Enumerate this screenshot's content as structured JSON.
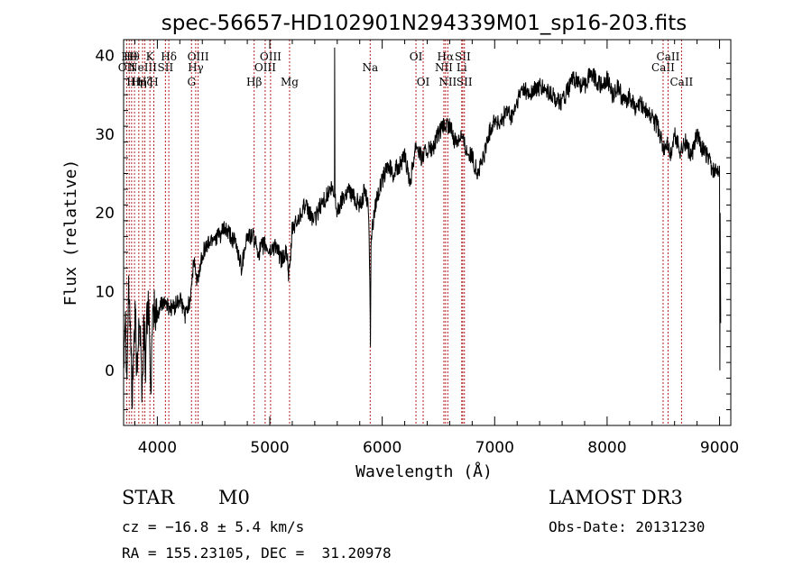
{
  "chart_data": {
    "type": "line",
    "title": "spec-56657-HD102901N294339M01_sp16-203.fits",
    "xlabel": "Wavelength (Å)",
    "ylabel": "Flux (relative)",
    "xlim": [
      3700,
      9100
    ],
    "ylim": [
      -7,
      42
    ],
    "xticks": [
      4000,
      5000,
      6000,
      7000,
      8000,
      9000
    ],
    "yticks": [
      0,
      10,
      20,
      30,
      40
    ],
    "series": [
      {
        "name": "flux",
        "x": [
          3700,
          3715,
          3730,
          3745,
          3760,
          3775,
          3790,
          3805,
          3820,
          3835,
          3850,
          3865,
          3880,
          3895,
          3910,
          3925,
          3940,
          3955,
          3970,
          3985,
          4000,
          4050,
          4100,
          4150,
          4200,
          4250,
          4290,
          4310,
          4330,
          4350,
          4380,
          4400,
          4450,
          4500,
          4550,
          4600,
          4650,
          4700,
          4750,
          4760,
          4780,
          4800,
          4850,
          4900,
          4950,
          5000,
          5050,
          5100,
          5150,
          5170,
          5180,
          5200,
          5250,
          5300,
          5350,
          5400,
          5450,
          5500,
          5550,
          5575,
          5577,
          5580,
          5600,
          5650,
          5700,
          5750,
          5800,
          5850,
          5880,
          5890,
          5895,
          5900,
          5910,
          5950,
          6000,
          6050,
          6100,
          6150,
          6200,
          6250,
          6300,
          6350,
          6400,
          6450,
          6500,
          6550,
          6600,
          6650,
          6700,
          6750,
          6800,
          6850,
          6900,
          6950,
          7000,
          7050,
          7100,
          7150,
          7200,
          7250,
          7300,
          7400,
          7500,
          7600,
          7700,
          7800,
          7850,
          7900,
          7950,
          8000,
          8050,
          8100,
          8150,
          8200,
          8250,
          8300,
          8400,
          8450,
          8500,
          8540,
          8560,
          8600,
          8650,
          8700,
          8750,
          8800,
          8850,
          8900,
          8950,
          9000,
          9003,
          9005,
          9010
        ],
        "values": [
          2,
          8,
          -1,
          11,
          6,
          -4,
          3,
          7,
          -2,
          8,
          4,
          -3,
          6,
          1,
          7,
          9,
          -3,
          4,
          8,
          7,
          7,
          9,
          8,
          8,
          9,
          7,
          9,
          12,
          14,
          11,
          13,
          15,
          16,
          17,
          17,
          18,
          17,
          16,
          13,
          14,
          16,
          17,
          17,
          15,
          16,
          15,
          16,
          14,
          15,
          12,
          13,
          18,
          19,
          21,
          20,
          19,
          21,
          22,
          23,
          22,
          41,
          22,
          20,
          22,
          23,
          22,
          21,
          23,
          20,
          12,
          3,
          16,
          18,
          22,
          24,
          26,
          25,
          26,
          27,
          24,
          29,
          27,
          28,
          28,
          30,
          31,
          31,
          29,
          30,
          28,
          27,
          25,
          27,
          30,
          32,
          31,
          33,
          32,
          34,
          36,
          35,
          36,
          35,
          34,
          37,
          36,
          38,
          37,
          36,
          37,
          35,
          36,
          34,
          35,
          33,
          34,
          32,
          31,
          28,
          29,
          27,
          30,
          28,
          29,
          27,
          30,
          28,
          27,
          25,
          26,
          0,
          20,
          6
        ]
      }
    ],
    "vlines": [
      {
        "x": 3727,
        "label": "OII",
        "row": 2
      },
      {
        "x": 3750,
        "label": "Hθ",
        "row": 1
      },
      {
        "x": 3771,
        "label": "Hθ",
        "row": 1
      },
      {
        "x": 3797,
        "label": "Hη",
        "row": 3
      },
      {
        "x": 3835,
        "label": "Hη",
        "row": 3
      },
      {
        "x": 3869,
        "label": "NeIII",
        "row": 2
      },
      {
        "x": 3889,
        "label": "Hζ",
        "row": 3
      },
      {
        "x": 3934,
        "label": "K",
        "row": 1
      },
      {
        "x": 3969,
        "label": "H",
        "row": 3
      },
      {
        "x": 4072,
        "label": "SII",
        "row": 2
      },
      {
        "x": 4102,
        "label": "Hδ",
        "row": 1
      },
      {
        "x": 4304,
        "label": "G",
        "row": 3
      },
      {
        "x": 4341,
        "label": "Hγ",
        "row": 2
      },
      {
        "x": 4363,
        "label": "OIII",
        "row": 1
      },
      {
        "x": 4861,
        "label": "Hβ",
        "row": 3
      },
      {
        "x": 4959,
        "label": "OIII",
        "row": 2
      },
      {
        "x": 5007,
        "label": "OIII",
        "row": 1
      },
      {
        "x": 5176,
        "label": "Mg",
        "row": 3
      },
      {
        "x": 5893,
        "label": "Na",
        "row": 2
      },
      {
        "x": 6300,
        "label": "OI",
        "row": 1
      },
      {
        "x": 6364,
        "label": "OI",
        "row": 3
      },
      {
        "x": 6548,
        "label": "NII",
        "row": 2
      },
      {
        "x": 6563,
        "label": "Hα",
        "row": 1
      },
      {
        "x": 6583,
        "label": "NII",
        "row": 3
      },
      {
        "x": 6707,
        "label": "Li",
        "row": 2
      },
      {
        "x": 6716,
        "label": "SII",
        "row": 1
      },
      {
        "x": 6731,
        "label": "SII",
        "row": 3
      },
      {
        "x": 8498,
        "label": "CaII",
        "row": 2
      },
      {
        "x": 8542,
        "label": "CaII",
        "row": 1
      },
      {
        "x": 8662,
        "label": "CaII",
        "row": 3
      }
    ]
  },
  "info": {
    "object_class": "STAR",
    "subclass": "M0",
    "survey": "LAMOST DR3",
    "cz": "cz = −16.8 ± 5.4 km/s",
    "obs_date": "Obs-Date: 20131230",
    "coords": "RA = 155.23105, DEC =  31.20978"
  }
}
